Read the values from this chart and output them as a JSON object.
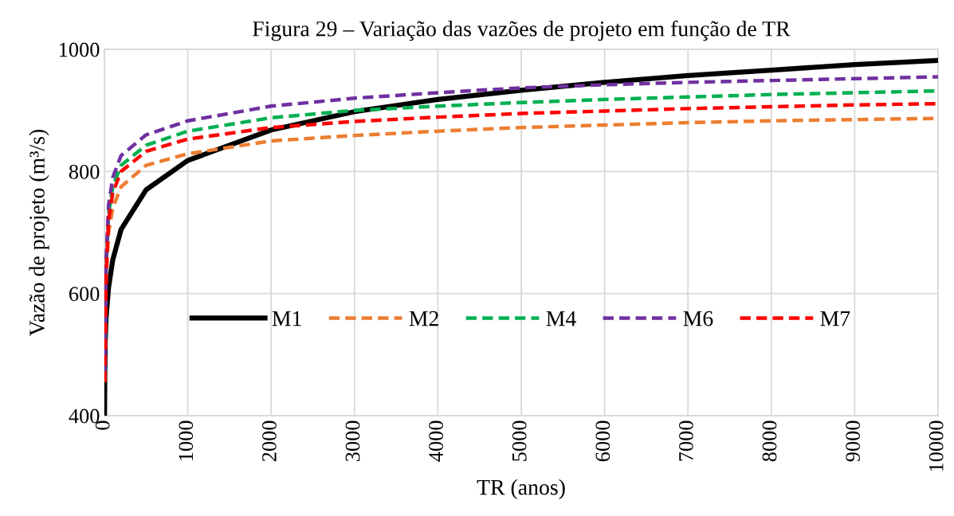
{
  "chart_data": {
    "type": "line",
    "title": "Figura 29 – Variação das vazões de projeto em função de TR",
    "xlabel": "TR (anos)",
    "ylabel": "Vazão de projeto (m³/s)",
    "xlim": [
      0,
      10000
    ],
    "xticks": [
      0,
      1000,
      2000,
      3000,
      4000,
      5000,
      6000,
      7000,
      8000,
      9000,
      10000
    ],
    "ylim": [
      400,
      1000
    ],
    "yticks": [
      400,
      600,
      800,
      1000
    ],
    "grid": true,
    "legend": "center",
    "marker": "none",
    "series": [
      {
        "name": "M1",
        "color": "#000000",
        "line_style": "solid",
        "x": [
          2,
          5,
          10,
          20,
          50,
          100,
          200,
          500,
          1000,
          2000,
          3000,
          4000,
          5000,
          6000,
          7000,
          8000,
          9000,
          10000
        ],
        "values": [
          400,
          470,
          520,
          560,
          610,
          655,
          705,
          770,
          818,
          868,
          898,
          918,
          933,
          946,
          957,
          966,
          975,
          982
        ]
      },
      {
        "name": "M2",
        "color": "#ed7d31",
        "line_style": "dashed",
        "x": [
          5,
          20,
          50,
          100,
          200,
          500,
          1000,
          2000,
          3000,
          4000,
          5000,
          6000,
          7000,
          8000,
          9000,
          10000
        ],
        "values": [
          455,
          620,
          700,
          740,
          775,
          810,
          829,
          850,
          859,
          866,
          872,
          876,
          880,
          883,
          885,
          887
        ]
      },
      {
        "name": "M4",
        "color": "#00b050",
        "line_style": "dashed",
        "x": [
          5,
          20,
          50,
          100,
          200,
          500,
          1000,
          2000,
          3000,
          4000,
          5000,
          6000,
          7000,
          8000,
          9000,
          10000
        ],
        "values": [
          465,
          640,
          730,
          775,
          810,
          843,
          866,
          888,
          900,
          907,
          913,
          918,
          922,
          926,
          929,
          932
        ]
      },
      {
        "name": "M6",
        "color": "#7030a0",
        "line_style": "dashed",
        "x": [
          5,
          20,
          50,
          100,
          200,
          500,
          1000,
          2000,
          3000,
          4000,
          5000,
          6000,
          7000,
          8000,
          9000,
          10000
        ],
        "values": [
          470,
          650,
          745,
          790,
          826,
          860,
          883,
          907,
          920,
          929,
          937,
          942,
          946,
          949,
          952,
          955
        ]
      },
      {
        "name": "M7",
        "color": "#ff0000",
        "line_style": "dashed",
        "x": [
          5,
          20,
          50,
          100,
          200,
          500,
          1000,
          2000,
          3000,
          4000,
          5000,
          6000,
          7000,
          8000,
          9000,
          10000
        ],
        "values": [
          455,
          630,
          720,
          765,
          800,
          833,
          853,
          872,
          882,
          889,
          895,
          899,
          903,
          906,
          909,
          911
        ]
      }
    ]
  }
}
